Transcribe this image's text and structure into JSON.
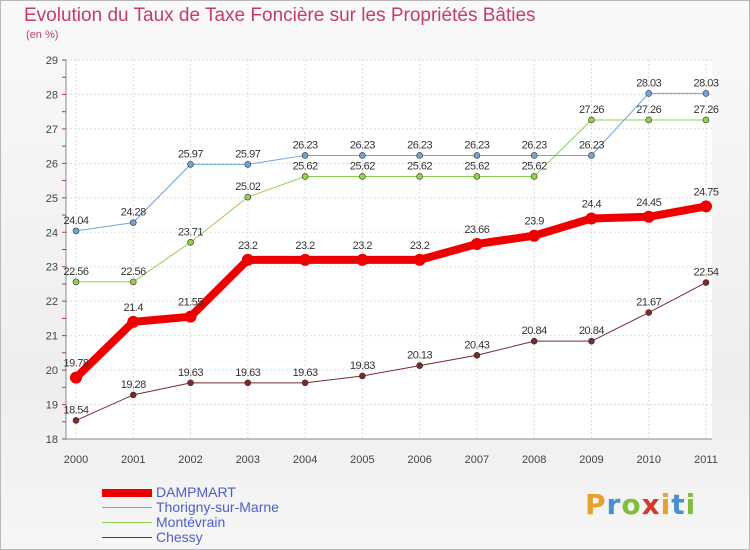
{
  "header": {
    "title": "Evolution du Taux de Taxe Foncière sur les Propriétés Bâties",
    "subtitle": "(en %)"
  },
  "logo": {
    "letters": [
      "P",
      "r",
      "o",
      "x",
      "i",
      "t",
      "i"
    ],
    "colors": [
      "#e8a12a",
      "#4a8fd0",
      "#7fbf3b",
      "#d23a2a",
      "#e8a12a",
      "#4a8fd0",
      "#7fbf3b"
    ]
  },
  "chart_data": {
    "type": "line",
    "x": [
      "2000",
      "2001",
      "2002",
      "2003",
      "2004",
      "2005",
      "2006",
      "2007",
      "2008",
      "2009",
      "2010",
      "2011"
    ],
    "ylim": [
      18,
      29
    ],
    "yticks": [
      "18",
      "19",
      "20",
      "21",
      "22",
      "23",
      "24",
      "25",
      "26",
      "27",
      "28",
      "29"
    ],
    "grid": true,
    "legend_position": "bottom-left",
    "series": [
      {
        "name": "Chessy",
        "color": "#7b2a2a",
        "width": 1,
        "values": [
          18.54,
          19.28,
          19.63,
          19.63,
          19.63,
          19.83,
          20.13,
          20.43,
          20.84,
          20.84,
          21.67,
          22.54
        ],
        "labels": [
          "18.54",
          "19.28",
          "19.63",
          "19.63",
          "19.63",
          "19.83",
          "20.13",
          "20.43",
          "20.84",
          "20.84",
          "21.67",
          "22.54"
        ]
      },
      {
        "name": "Montévrain",
        "color": "#8fd14f",
        "width": 1,
        "values": [
          22.56,
          22.56,
          23.71,
          25.02,
          25.62,
          25.62,
          25.62,
          25.62,
          25.62,
          27.26,
          27.26,
          27.26
        ],
        "labels": [
          "22.56",
          "22.56",
          "23.71",
          "25.02",
          "25.62",
          "25.62",
          "25.62",
          "25.62",
          "25.62",
          "27.26",
          "27.26",
          "27.26"
        ]
      },
      {
        "name": "Thorigny-sur-Marne",
        "color": "#6fa4d8",
        "width": 1,
        "values": [
          24.04,
          24.28,
          25.97,
          25.97,
          26.23,
          26.23,
          26.23,
          26.23,
          26.23,
          26.23,
          28.03,
          28.03
        ],
        "labels": [
          "24.04",
          "24.28",
          "25.97",
          "25.97",
          "26.23",
          "26.23",
          "26.23",
          "26.23",
          "26.23",
          "26.23",
          "28.03",
          "28.03"
        ]
      },
      {
        "name": "DAMPMART",
        "color": "#ee0000",
        "width": 8,
        "values": [
          19.78,
          21.4,
          21.55,
          23.2,
          23.2,
          23.2,
          23.2,
          23.66,
          23.9,
          24.4,
          24.45,
          24.75
        ],
        "labels": [
          "19.78",
          "21.4",
          "21.55",
          "23.2",
          "23.2",
          "23.2",
          "23.2",
          "23.66",
          "23.9",
          "24.4",
          "24.45",
          "24.75"
        ]
      }
    ],
    "legend": [
      "DAMPMART",
      "Thorigny-sur-Marne",
      "Montévrain",
      "Chessy"
    ]
  }
}
